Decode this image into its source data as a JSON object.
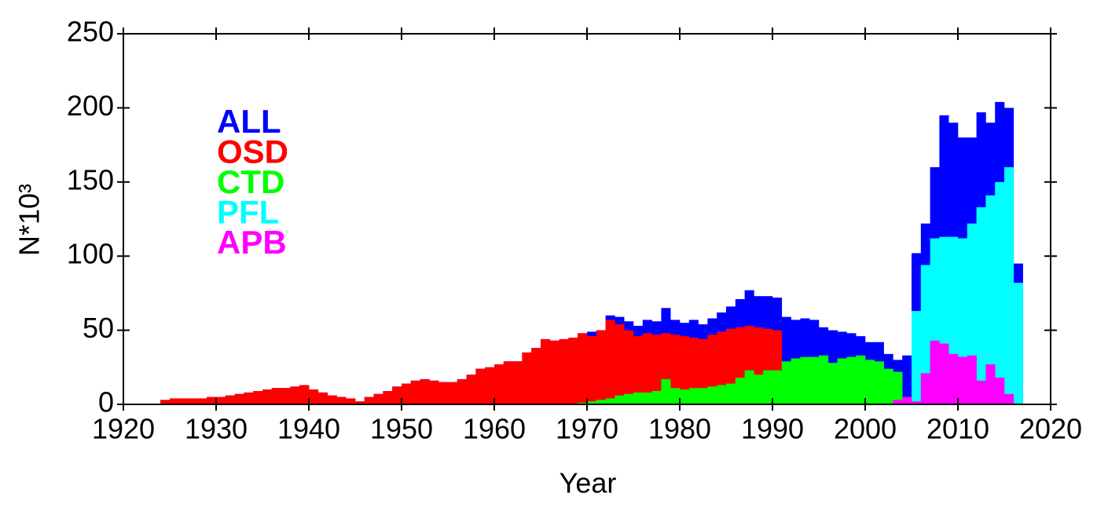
{
  "chart_data": {
    "type": "histogram",
    "xlabel": "Year",
    "ylabel": "N*10³",
    "xlim": [
      1920,
      2020
    ],
    "xticks": [
      1920,
      1930,
      1940,
      1950,
      1960,
      1970,
      1980,
      1990,
      2000,
      2010,
      2020
    ],
    "ylim": [
      0,
      250
    ],
    "yticks": [
      0,
      50,
      100,
      150,
      200,
      250
    ],
    "bins": [
      1924,
      1925,
      1926,
      1927,
      1928,
      1929,
      1930,
      1931,
      1932,
      1933,
      1934,
      1935,
      1936,
      1937,
      1938,
      1939,
      1940,
      1941,
      1942,
      1943,
      1944,
      1945,
      1946,
      1947,
      1948,
      1949,
      1950,
      1951,
      1952,
      1953,
      1954,
      1955,
      1956,
      1957,
      1958,
      1959,
      1960,
      1961,
      1962,
      1963,
      1964,
      1965,
      1966,
      1967,
      1968,
      1969,
      1970,
      1971,
      1972,
      1973,
      1974,
      1975,
      1976,
      1977,
      1978,
      1979,
      1980,
      1981,
      1982,
      1983,
      1984,
      1985,
      1986,
      1987,
      1988,
      1989,
      1990,
      1991,
      1992,
      1993,
      1994,
      1995,
      1996,
      1997,
      1998,
      1999,
      2000,
      2001,
      2002,
      2003,
      2004,
      2005,
      2006,
      2007,
      2008,
      2009,
      2010,
      2011,
      2012,
      2013,
      2014,
      2015,
      2016,
      2017
    ],
    "series": [
      {
        "name": "ALL",
        "color": "#0000ff",
        "values": [
          3,
          4,
          4,
          4,
          4,
          5,
          5,
          6,
          7,
          8,
          9,
          10,
          11,
          11,
          12,
          13,
          10,
          8,
          6,
          5,
          4,
          2,
          5,
          7,
          9,
          12,
          14,
          16,
          17,
          16,
          15,
          15,
          17,
          20,
          24,
          25,
          27,
          29,
          29,
          35,
          38,
          44,
          43,
          44,
          45,
          48,
          49,
          50,
          60,
          59,
          56,
          53,
          57,
          56,
          65,
          57,
          55,
          57,
          54,
          58,
          62,
          66,
          71,
          77,
          73,
          73,
          72,
          59,
          57,
          58,
          57,
          52,
          50,
          49,
          48,
          46,
          42,
          42,
          34,
          30,
          33,
          102,
          122,
          160,
          195,
          190,
          180,
          180,
          197,
          190,
          204,
          200,
          95
        ]
      },
      {
        "name": "OSD",
        "color": "#ff0000",
        "values": [
          3,
          4,
          4,
          4,
          4,
          5,
          5,
          6,
          7,
          8,
          9,
          10,
          11,
          11,
          12,
          13,
          10,
          8,
          6,
          5,
          4,
          2,
          5,
          7,
          9,
          12,
          14,
          16,
          17,
          16,
          15,
          15,
          17,
          20,
          24,
          25,
          27,
          29,
          29,
          35,
          38,
          44,
          43,
          44,
          45,
          48,
          46,
          50,
          57,
          54,
          50,
          46,
          48,
          47,
          48,
          47,
          46,
          45,
          44,
          47,
          49,
          51,
          52,
          53,
          52,
          51,
          50,
          0,
          0,
          0,
          0,
          0,
          0,
          0,
          0,
          0,
          0,
          0,
          0,
          0,
          0,
          0,
          0,
          0,
          0,
          0,
          0,
          0,
          0,
          0,
          0,
          0,
          0
        ]
      },
      {
        "name": "CTD",
        "color": "#00ff00",
        "values": [
          0,
          0,
          0,
          0,
          0,
          0,
          0,
          0,
          0,
          0,
          0,
          0,
          0,
          0,
          0,
          0,
          0,
          0,
          0,
          0,
          0,
          0,
          0,
          0,
          0,
          0,
          0,
          0,
          0,
          0,
          0,
          0,
          0,
          0,
          0,
          0,
          0,
          0,
          0,
          0,
          0,
          0,
          0,
          0,
          0,
          1,
          2,
          3,
          4,
          6,
          7,
          8,
          8,
          9,
          17,
          11,
          10,
          11,
          11,
          12,
          13,
          14,
          18,
          23,
          20,
          23,
          23,
          29,
          31,
          32,
          32,
          33,
          28,
          31,
          32,
          33,
          30,
          29,
          24,
          22,
          0,
          0,
          0,
          0,
          0,
          0,
          0,
          0,
          0,
          0,
          0,
          0,
          0
        ]
      },
      {
        "name": "PFL",
        "color": "#00ffff",
        "values": [
          0,
          0,
          0,
          0,
          0,
          0,
          0,
          0,
          0,
          0,
          0,
          0,
          0,
          0,
          0,
          0,
          0,
          0,
          0,
          0,
          0,
          0,
          0,
          0,
          0,
          0,
          0,
          0,
          0,
          0,
          0,
          0,
          0,
          0,
          0,
          0,
          0,
          0,
          0,
          0,
          0,
          0,
          0,
          0,
          0,
          0,
          0,
          0,
          0,
          0,
          0,
          0,
          0,
          0,
          0,
          0,
          0,
          0,
          0,
          0,
          0,
          0,
          0,
          0,
          0,
          0,
          0,
          0,
          0,
          0,
          0,
          0,
          0,
          0,
          0,
          0,
          0,
          0,
          0,
          0,
          0,
          63,
          94,
          112,
          113,
          113,
          112,
          122,
          133,
          141,
          150,
          160,
          82
        ]
      },
      {
        "name": "APB",
        "color": "#ff00ff",
        "values": [
          0,
          0,
          0,
          0,
          0,
          0,
          0,
          0,
          0,
          0,
          0,
          0,
          0,
          0,
          0,
          0,
          0,
          0,
          0,
          0,
          0,
          0,
          0,
          0,
          0,
          0,
          0,
          0,
          0,
          0,
          0,
          0,
          0,
          0,
          0,
          0,
          0,
          0,
          0,
          0,
          0,
          0,
          0,
          0,
          0,
          0,
          0,
          0,
          0,
          0,
          0,
          0,
          0,
          0,
          0,
          0,
          0,
          0,
          0,
          0,
          0,
          0,
          0,
          0,
          0,
          0,
          0,
          0,
          0,
          0,
          0,
          0,
          0,
          0,
          0,
          0,
          0,
          0,
          0,
          3,
          5,
          2,
          21,
          43,
          41,
          34,
          32,
          33,
          16,
          27,
          18,
          7,
          0
        ]
      }
    ]
  }
}
